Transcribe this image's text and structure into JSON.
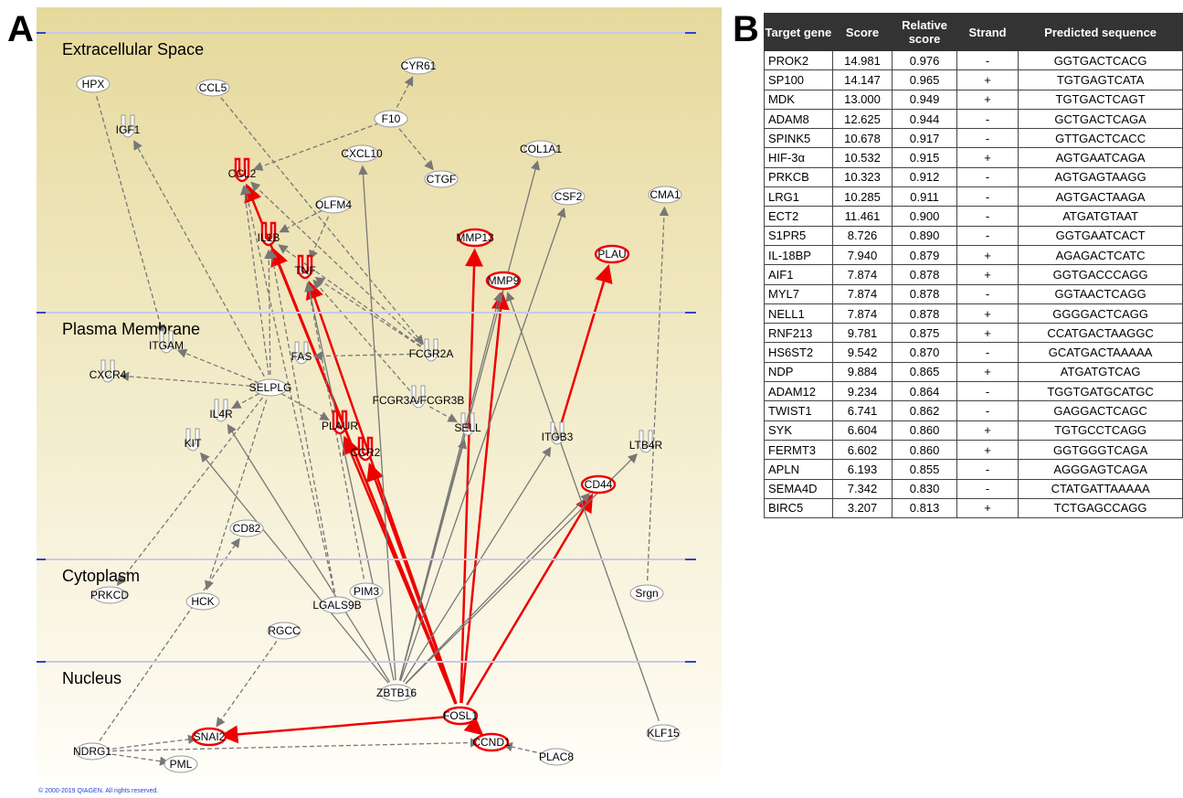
{
  "panels": [
    "A",
    "B"
  ],
  "compartments": [
    "Extracellular Space",
    "Plasma Membrane",
    "Cytoplasm",
    "Nucleus"
  ],
  "nodes": [
    {
      "label": "HPX"
    },
    {
      "label": "CCL5"
    },
    {
      "label": "CYR61"
    },
    {
      "label": "IGF1"
    },
    {
      "label": "F10"
    },
    {
      "label": "CXCL10"
    },
    {
      "label": "COL1A1"
    },
    {
      "label": "CCL2"
    },
    {
      "label": "CTGF"
    },
    {
      "label": "OLFM4"
    },
    {
      "label": "CSF2"
    },
    {
      "label": "CMA1"
    },
    {
      "label": "IL1B"
    },
    {
      "label": "MMP13"
    },
    {
      "label": "TNF"
    },
    {
      "label": "PLAU"
    },
    {
      "label": "MMP9"
    },
    {
      "label": "ITGAM"
    },
    {
      "label": "FAS"
    },
    {
      "label": "FCGR2A"
    },
    {
      "label": "CXCR4"
    },
    {
      "label": "SELPLG"
    },
    {
      "label": "FCGR3A/FCGR3B"
    },
    {
      "label": "IL4R"
    },
    {
      "label": "PLAUR"
    },
    {
      "label": "SELL"
    },
    {
      "label": "ITGB3"
    },
    {
      "label": "LTB4R"
    },
    {
      "label": "KIT"
    },
    {
      "label": "CCR2"
    },
    {
      "label": "CD44"
    },
    {
      "label": "CD82"
    },
    {
      "label": "PRKCD"
    },
    {
      "label": "HCK"
    },
    {
      "label": "PIM3"
    },
    {
      "label": "LGALS9B"
    },
    {
      "label": "Srgn"
    },
    {
      "label": "RGCC"
    },
    {
      "label": "ZBTB16"
    },
    {
      "label": "FOSL1"
    },
    {
      "label": "SNAI2"
    },
    {
      "label": "CCND1"
    },
    {
      "label": "KLF15"
    },
    {
      "label": "NDRG1"
    },
    {
      "label": "PML"
    },
    {
      "label": "PLAC8"
    }
  ],
  "copyright": "© 2000-2019 QIAGEN. All rights reserved.",
  "table": {
    "header": [
      "Target gene",
      "Score",
      "Relative score",
      "Strand",
      "Predicted sequence"
    ],
    "rows": [
      [
        "PROK2",
        "14.981",
        "0.976",
        "-",
        "GGTGACTCACG"
      ],
      [
        "SP100",
        "14.147",
        "0.965",
        "+",
        "TGTGAGTCATA"
      ],
      [
        "MDK",
        "13.000",
        "0.949",
        "+",
        "TGTGACTCAGT"
      ],
      [
        "ADAM8",
        "12.625",
        "0.944",
        "-",
        "GCTGACTCAGA"
      ],
      [
        "SPINK5",
        "10.678",
        "0.917",
        "-",
        "GTTGACTCACC"
      ],
      [
        "HIF-3α",
        "10.532",
        "0.915",
        "+",
        "AGTGAATCAGA"
      ],
      [
        "PRKCB",
        "10.323",
        "0.912",
        "-",
        "AGTGAGTAAGG"
      ],
      [
        "LRG1",
        "10.285",
        "0.911",
        "-",
        "AGTGACTAAGA"
      ],
      [
        "ECT2",
        "11.461",
        "0.900",
        "-",
        "ATGATGTAAT"
      ],
      [
        "S1PR5",
        "8.726",
        "0.890",
        "-",
        "GGTGAATCACT"
      ],
      [
        "IL-18BP",
        "7.940",
        "0.879",
        "+",
        "AGAGACTCATC"
      ],
      [
        "AIF1",
        "7.874",
        "0.878",
        "+",
        "GGTGACCCAGG"
      ],
      [
        "MYL7",
        "7.874",
        "0.878",
        "-",
        "GGTAACTCAGG"
      ],
      [
        "NELL1",
        "7.874",
        "0.878",
        "+",
        "GGGGACTCAGG"
      ],
      [
        "RNF213",
        "9.781",
        "0.875",
        "+",
        "CCATGACTAAGGC"
      ],
      [
        "HS6ST2",
        "9.542",
        "0.870",
        "-",
        "GCATGACTAAAAA"
      ],
      [
        "NDP",
        "9.884",
        "0.865",
        "+",
        "ATGATGTCAG"
      ],
      [
        "ADAM12",
        "9.234",
        "0.864",
        "-",
        "TGGTGATGCATGC"
      ],
      [
        "TWIST1",
        "6.741",
        "0.862",
        "-",
        "GAGGACTCAGC"
      ],
      [
        "SYK",
        "6.604",
        "0.860",
        "+",
        "TGTGCCTCAGG"
      ],
      [
        "FERMT3",
        "6.602",
        "0.860",
        "+",
        "GGTGGGTCAGA"
      ],
      [
        "APLN",
        "6.193",
        "0.855",
        "-",
        "AGGGAGTCAGA"
      ],
      [
        "SEMA4D",
        "7.342",
        "0.830",
        "-",
        "CTATGATTAAAAA"
      ],
      [
        "BIRC5",
        "3.207",
        "0.813",
        "+",
        "TCTGAGCCAGG"
      ]
    ]
  }
}
